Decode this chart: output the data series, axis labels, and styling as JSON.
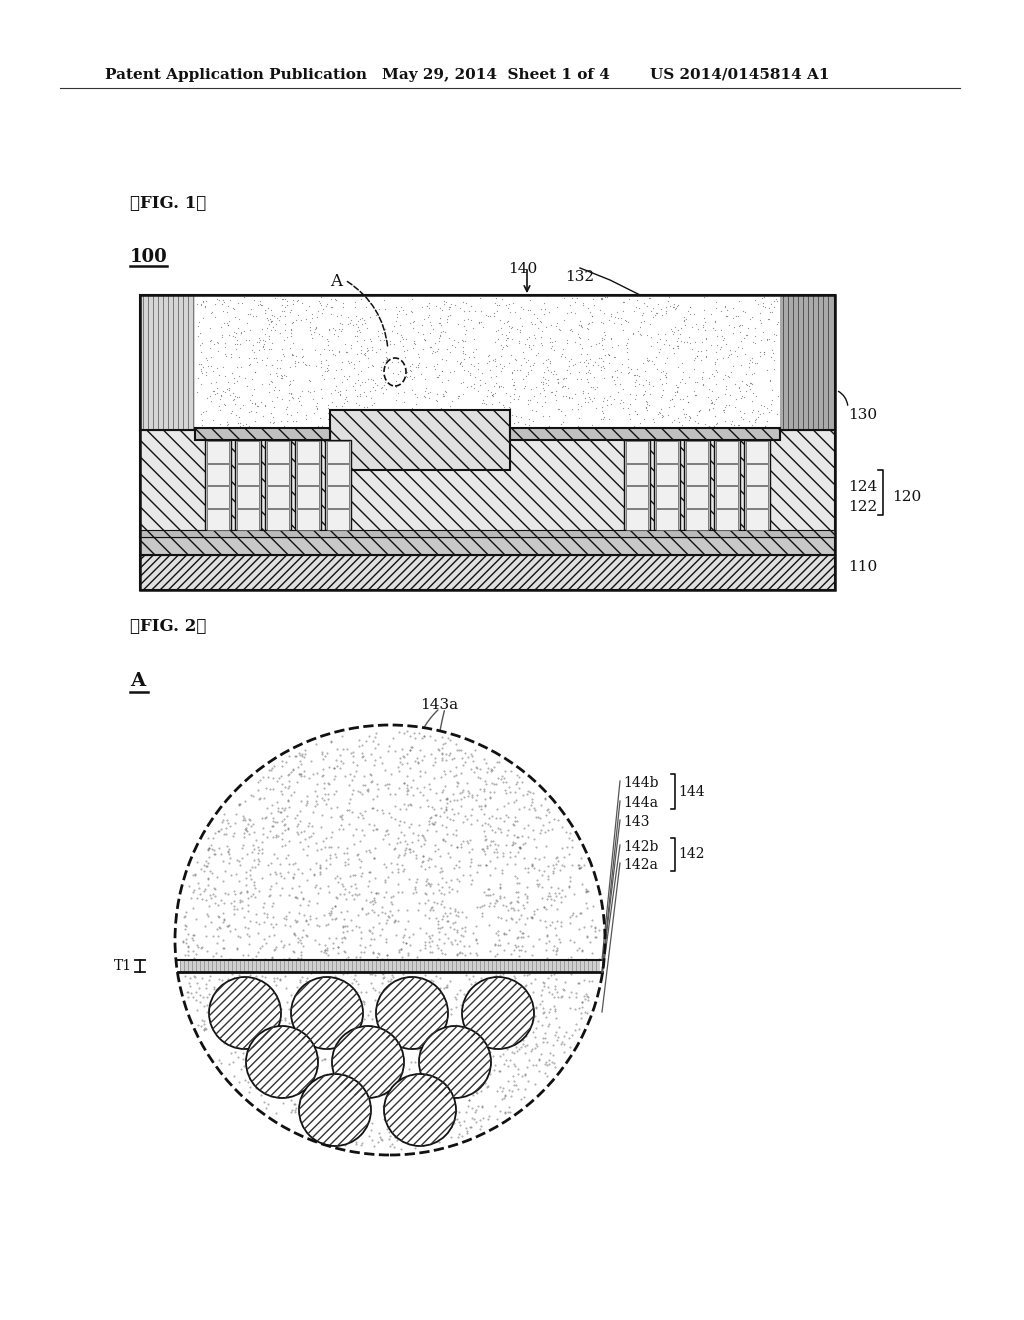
{
  "bg_color": "#ffffff",
  "header_left": "Patent Application Publication",
  "header_mid": "May 29, 2014  Sheet 1 of 4",
  "header_right": "US 2014/0145814 A1",
  "fig1_label": "【FIG. 1】",
  "fig2_label": "【FIG. 2】",
  "ref_100": "100",
  "ref_110": "110",
  "ref_120": "120",
  "ref_122": "122",
  "ref_124": "124",
  "ref_130": "130",
  "ref_132": "132",
  "ref_140": "140",
  "ref_A_fig1": "A",
  "ref_A_fig2": "A",
  "ref_T1": "T1",
  "ref_143a": "143a",
  "ref_144b": "144b",
  "ref_144a": "144a",
  "ref_144": "144",
  "ref_143": "143",
  "ref_142b": "142b",
  "ref_142": "142",
  "ref_142a": "142a"
}
